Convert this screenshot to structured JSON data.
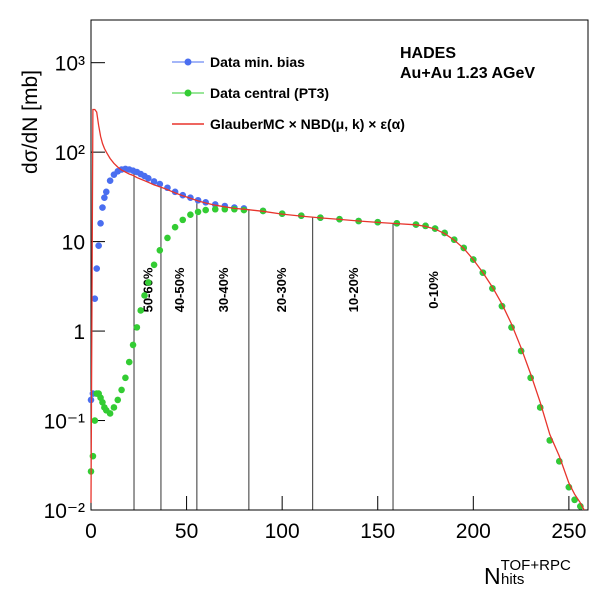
{
  "chart_data": {
    "type": "scatter",
    "annotations": [
      "HADES",
      "Au+Au 1.23 AGeV"
    ],
    "ylabel": "dσ/dN [mb]",
    "xlabel": "N",
    "xlabel_sub": "hits",
    "xlabel_sup": "TOF+RPC",
    "log_y": true,
    "xlim": [
      0,
      260
    ],
    "xticks": [
      0,
      50,
      100,
      150,
      200,
      250
    ],
    "ylim": [
      0.01,
      3000
    ],
    "yticks": [
      {
        "value": 0.01,
        "label": "10⁻²"
      },
      {
        "value": 0.1,
        "label": "10⁻¹"
      },
      1,
      10,
      {
        "value": 100,
        "label": "10²"
      },
      {
        "value": 1000,
        "label": "10³"
      }
    ],
    "x": [
      0,
      1,
      2,
      3,
      4,
      5,
      6,
      7,
      8,
      10,
      12,
      14,
      16,
      18,
      20,
      22,
      24,
      26,
      28,
      30,
      33,
      36,
      40,
      44,
      48,
      52,
      56,
      60,
      65,
      70,
      75,
      80,
      90,
      100,
      110,
      120,
      130,
      140,
      150,
      160,
      170,
      175,
      180,
      185,
      190,
      195,
      200,
      205,
      210,
      215,
      220,
      225,
      230,
      235,
      240,
      245,
      250,
      253,
      256,
      258
    ],
    "series": [
      {
        "name": "Data min. bias",
        "color": "#4a6ef0",
        "mode": "markers",
        "values": [
          0.17,
          0.2,
          2.3,
          5,
          9,
          16,
          24,
          31,
          36,
          48,
          56,
          61,
          64,
          65,
          64,
          62,
          60,
          57,
          54,
          51,
          47,
          44,
          40,
          36,
          33,
          31,
          29,
          27.5,
          26,
          25,
          24,
          23.5,
          22,
          20.5,
          19.5,
          18.5,
          17.8,
          17,
          16.5,
          16,
          15.5,
          15,
          14,
          12.5,
          10.5,
          8.5,
          6.3,
          4.5,
          3.0,
          1.9,
          1.1,
          0.6,
          0.3,
          0.14,
          0.06,
          0.035,
          0.018,
          0.013,
          0.011,
          null
        ]
      },
      {
        "name": "Data central (PT3)",
        "color": "#33cc33",
        "mode": "markers",
        "values": [
          0.027,
          0.04,
          0.1,
          0.2,
          0.2,
          0.18,
          0.16,
          0.14,
          0.13,
          0.12,
          0.14,
          0.17,
          0.22,
          0.3,
          0.45,
          0.7,
          1.1,
          1.7,
          2.5,
          3.5,
          5.5,
          8,
          11,
          14.5,
          17.5,
          20,
          21.5,
          22.5,
          23,
          23,
          23,
          22.5,
          22,
          20.5,
          19.5,
          18.5,
          17.8,
          17,
          16.5,
          16,
          15.5,
          15,
          14,
          12.5,
          10.5,
          8.5,
          6.3,
          4.5,
          3.0,
          1.9,
          1.1,
          0.6,
          0.3,
          0.14,
          0.06,
          0.035,
          0.018,
          0.013,
          0.011,
          null
        ]
      },
      {
        "name": "GlauberMC × NBD(μ, k) × ε(α)",
        "color": "#e8342c",
        "mode": "line",
        "values": [
          0.012,
          300,
          300,
          280,
          200,
          150,
          125,
          110,
          100,
          85,
          75,
          68,
          63,
          60,
          57,
          55,
          52,
          50,
          48,
          46,
          43,
          41,
          38,
          35,
          32.5,
          30.5,
          28.5,
          27,
          25.5,
          24.5,
          23.5,
          23,
          21.8,
          20.3,
          19.3,
          18.4,
          17.7,
          17,
          16.4,
          15.9,
          15.4,
          14.8,
          13.8,
          12.3,
          10.4,
          8.4,
          6.3,
          4.5,
          3.1,
          2.0,
          1.2,
          0.65,
          0.33,
          0.16,
          0.07,
          0.04,
          0.02,
          0.015,
          0.012,
          0.01
        ]
      }
    ],
    "boundaries": [
      22.5,
      36.6,
      55.4,
      82.6,
      116,
      158
    ],
    "regions": [
      "50-60%",
      "40-50%",
      "30-40%",
      "20-30%",
      "10-20%",
      "0-10%"
    ]
  }
}
